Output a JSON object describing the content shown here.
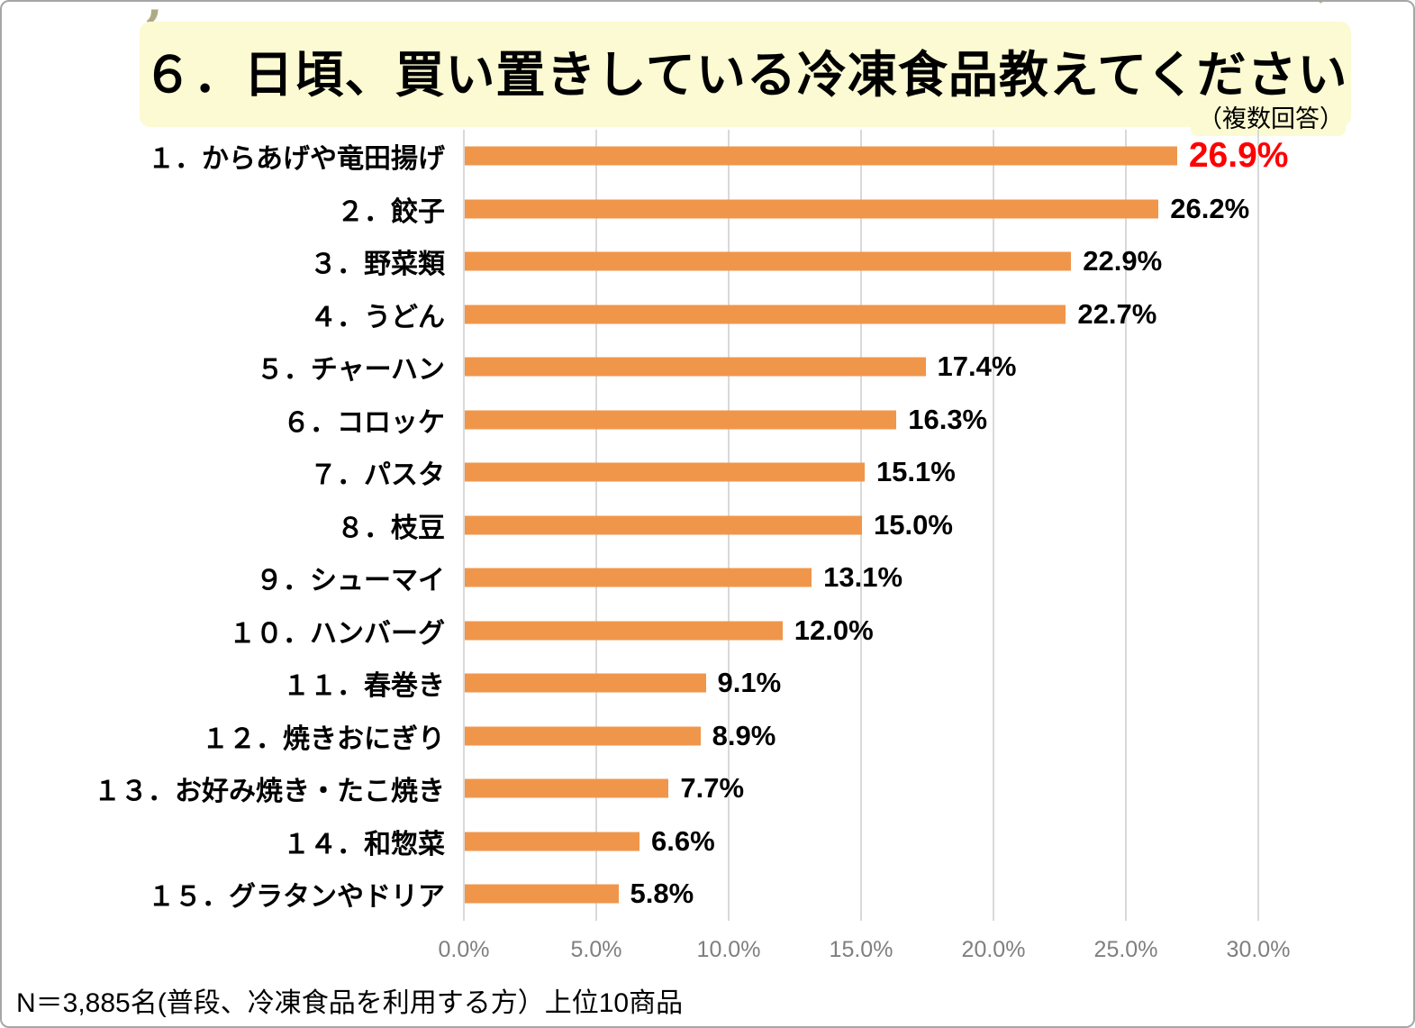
{
  "title": {
    "text": "６．日頃、買い置きしている冷凍食品教えてください",
    "note": "（複数回答）"
  },
  "footer": {
    "text": "N＝3,885名(普段、冷凍食品を利用する方）上位10商品"
  },
  "decorations": {
    "opening_quote": "’",
    "closing_quote": "’"
  },
  "colors": {
    "bar": "#f0964b",
    "highlight_value": "#ff0000",
    "title_band_bg": "#fbfad2",
    "gridline": "#d9d9d9",
    "axis_label": "#7f7f7f"
  },
  "chart_data": {
    "type": "bar",
    "orientation": "horizontal",
    "title": "６．日頃、買い置きしている冷凍食品教えてください",
    "subtitle": "（複数回答）",
    "categories": [
      "１．からあげや竜田揚げ",
      "２．餃子",
      "３．野菜類",
      "４．うどん",
      "５．チャーハン",
      "６．コロッケ",
      "７．パスタ",
      "８．枝豆",
      "９．シューマイ",
      "１０．ハンバーグ",
      "１１．春巻き",
      "１２．焼きおにぎり",
      "１３．お好み焼き・たこ焼き",
      "１４．和惣菜",
      "１５．グラタンやドリア"
    ],
    "values": [
      26.9,
      26.2,
      22.9,
      22.7,
      17.4,
      16.3,
      15.1,
      15.0,
      13.1,
      12.0,
      9.1,
      8.9,
      7.7,
      6.6,
      5.8
    ],
    "value_labels": [
      "26.9%",
      "26.2%",
      "22.9%",
      "22.7%",
      "17.4%",
      "16.3%",
      "15.1%",
      "15.0%",
      "13.1%",
      "12.0%",
      "9.1%",
      "8.9%",
      "7.7%",
      "6.6%",
      "5.8%"
    ],
    "highlight_index": 0,
    "highlight_color": "#ff0000",
    "x_ticks": [
      "0.0%",
      "5.0%",
      "10.0%",
      "15.0%",
      "20.0%",
      "25.0%",
      "30.0%"
    ],
    "x_tick_values": [
      0,
      5,
      10,
      15,
      20,
      25,
      30
    ],
    "xlim": [
      0,
      32.5
    ],
    "grid": true,
    "legend": false,
    "bar_color": "#f0964b",
    "note_bottom": "N＝3,885名(普段、冷凍食品を利用する方）上位10商品"
  }
}
